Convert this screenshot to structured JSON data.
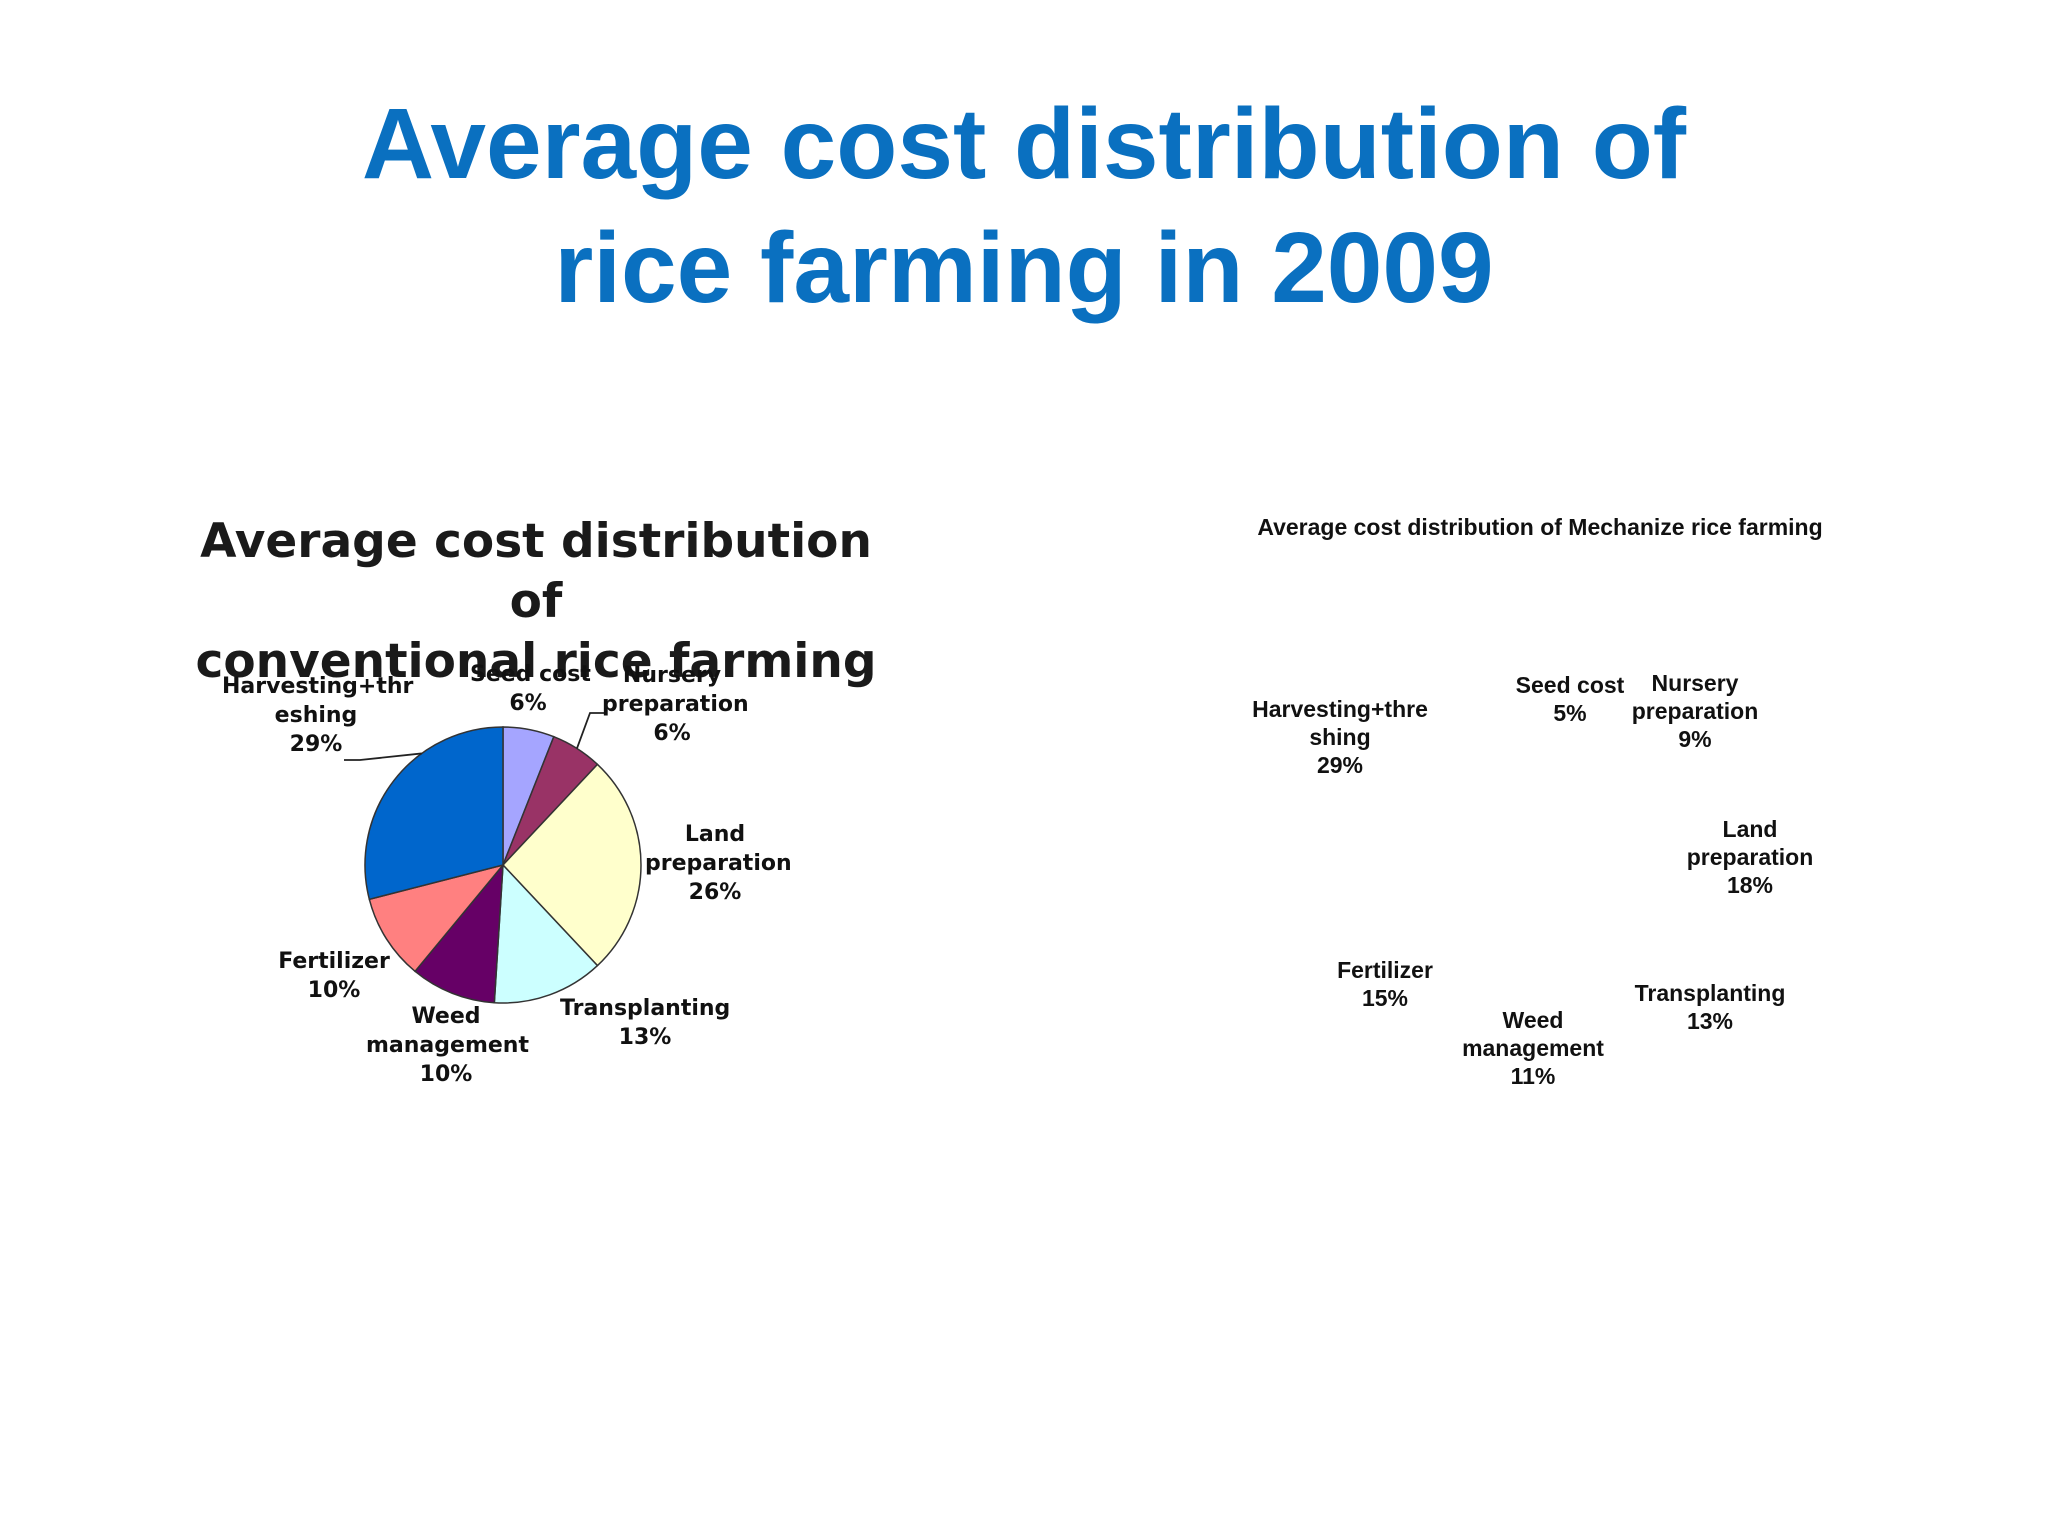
{
  "slide": {
    "title_line1": "Average cost distribution of",
    "title_line2": "rice farming in 2009"
  },
  "chart_data": [
    {
      "type": "pie",
      "title_line1": "Average cost distribution of",
      "title_line2": "conventional rice farming",
      "slices": [
        {
          "label_line1": "Seed cost",
          "label_line2": "",
          "value": 6,
          "pct": "6%",
          "color": "#a5a5ff"
        },
        {
          "label_line1": "Nursery",
          "label_line2": "preparation",
          "value": 6,
          "pct": "6%",
          "color": "#993366"
        },
        {
          "label_line1": "Land",
          "label_line2": "preparation",
          "value": 26,
          "pct": "26%",
          "color": "#ffffcc"
        },
        {
          "label_line1": "Transplanting",
          "label_line2": "",
          "value": 13,
          "pct": "13%",
          "color": "#ccffff"
        },
        {
          "label_line1": "Weed",
          "label_line2": "management",
          "value": 10,
          "pct": "10%",
          "color": "#660066"
        },
        {
          "label_line1": "Fertilizer",
          "label_line2": "",
          "value": 10,
          "pct": "10%",
          "color": "#ff8080"
        },
        {
          "label_line1": "Harvesting+thr",
          "label_line2": "eshing",
          "value": 29,
          "pct": "29%",
          "color": "#0066cc"
        }
      ]
    },
    {
      "type": "pie",
      "title": "Average cost distribution of Mechanize rice farming",
      "slices": [
        {
          "label_line1": "Seed cost",
          "label_line2": "",
          "value": 5,
          "pct": "5%"
        },
        {
          "label_line1": "Nursery",
          "label_line2": "preparation",
          "value": 9,
          "pct": "9%"
        },
        {
          "label_line1": "Land",
          "label_line2": "preparation",
          "value": 18,
          "pct": "18%"
        },
        {
          "label_line1": "Transplanting",
          "label_line2": "",
          "value": 13,
          "pct": "13%"
        },
        {
          "label_line1": "Weed",
          "label_line2": "management",
          "value": 11,
          "pct": "11%"
        },
        {
          "label_line1": "Fertilizer",
          "label_line2": "",
          "value": 15,
          "pct": "15%"
        },
        {
          "label_line1": "Harvesting+thre",
          "label_line2": "shing",
          "value": 29,
          "pct": "29%"
        }
      ]
    }
  ]
}
